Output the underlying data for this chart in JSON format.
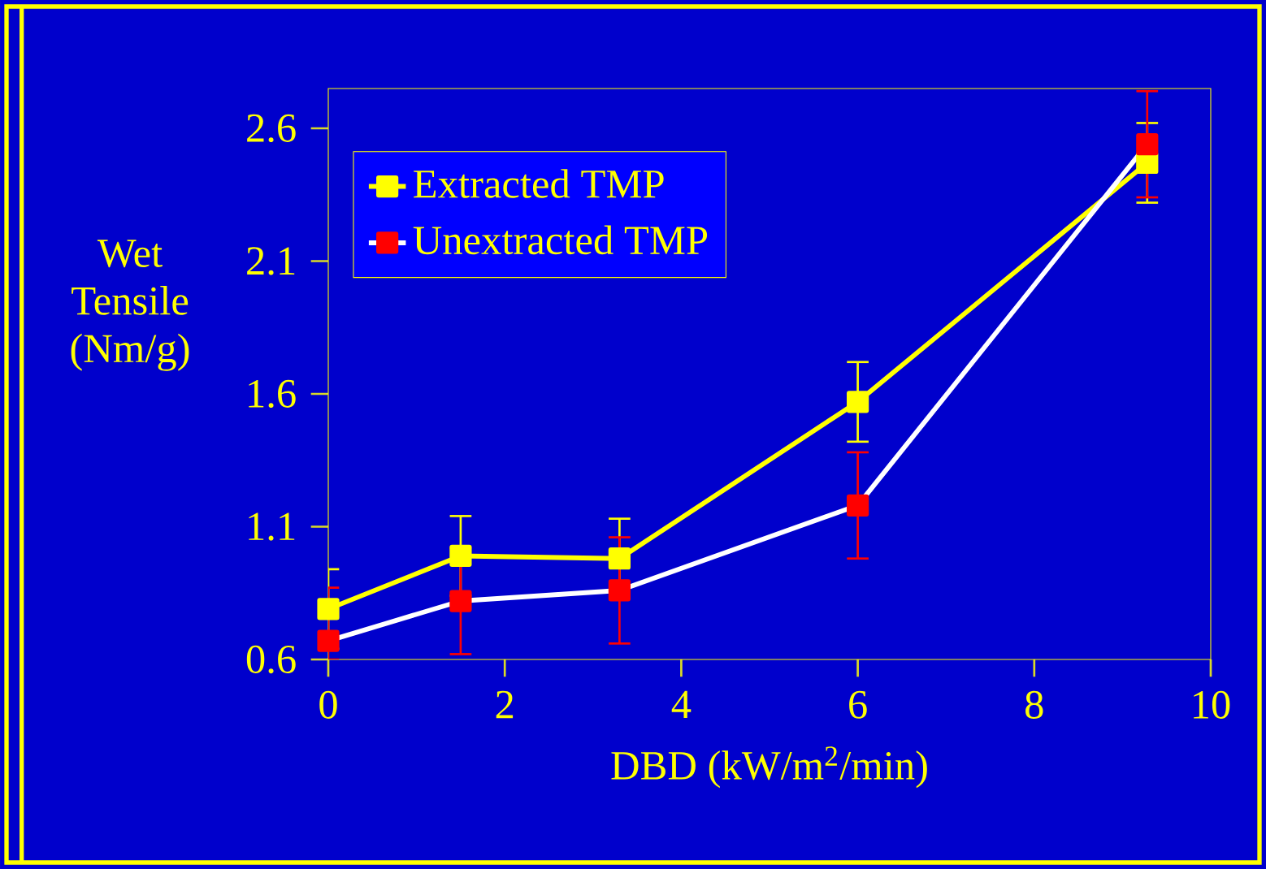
{
  "chart_data": {
    "type": "line",
    "xlabel": "DBD (kW/m$^{2}$/min)",
    "ylabel": "Wet Tensile (Nm/g)",
    "x": [
      0,
      1.5,
      3.3,
      6,
      9.28
    ],
    "series": [
      {
        "name": "Extracted TMP",
        "color": "#ffff00",
        "values": [
          0.79,
          0.99,
          0.98,
          1.57,
          2.47
        ],
        "errors": [
          0.15,
          0.15,
          0.15,
          0.15,
          0.15
        ]
      },
      {
        "name": "Unextracted TMP",
        "color": "#ffffff",
        "colors": [
          "#ff0000",
          "#ff0000",
          "#ff0000",
          "#ff0000",
          "#ff0000"
        ],
        "values": [
          0.67,
          0.82,
          0.86,
          1.18,
          2.54
        ],
        "errors": [
          [
            0.6,
            0.87
          ],
          0.2,
          0.2,
          0.2,
          0.2
        ]
      }
    ],
    "xlim": [
      0,
      10
    ],
    "xticks": [
      0,
      2,
      4,
      6,
      8,
      10
    ],
    "ylim": [
      0.6,
      2.75
    ],
    "yticks": [
      0.6,
      1.1,
      1.6,
      2.1,
      2.6
    ],
    "legend": "top left",
    "marker": "square",
    "line_style": "solid",
    "grid": false
  }
}
